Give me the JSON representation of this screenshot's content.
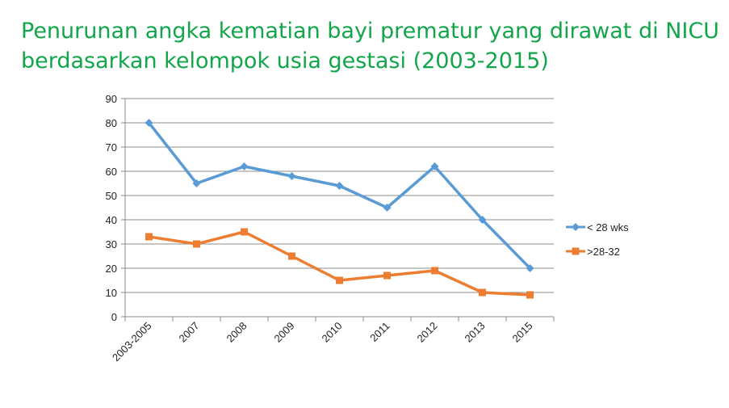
{
  "title": {
    "line1": "Penurunan angka kematian bayi prematur yang dirawat di NICU",
    "line2": "berdasarkan kelompok usia gestasi (2003-2015)"
  },
  "colors": {
    "title": "#12a64a",
    "grid": "#8c8c8c",
    "series1": "#5b9bd5",
    "series2": "#ed7d31"
  },
  "chart_data": {
    "type": "line",
    "categories": [
      "2003-2005",
      "2007",
      "2008",
      "2009",
      "2010",
      "2011",
      "2012",
      "2013",
      "2015"
    ],
    "series": [
      {
        "name": "< 28 wks",
        "values": [
          80,
          55,
          62,
          58,
          54,
          45,
          62,
          40,
          20
        ],
        "color": "#5b9bd5",
        "marker": "diamond"
      },
      {
        "name": ">28-32",
        "values": [
          33,
          30,
          35,
          25,
          15,
          17,
          19,
          10,
          9
        ],
        "color": "#ed7d31",
        "marker": "square"
      }
    ],
    "ylim": [
      0,
      90
    ],
    "yticks": [
      0,
      10,
      20,
      30,
      40,
      50,
      60,
      70,
      80,
      90
    ],
    "grid": true,
    "legend": "right",
    "xlabel": "",
    "ylabel": ""
  }
}
